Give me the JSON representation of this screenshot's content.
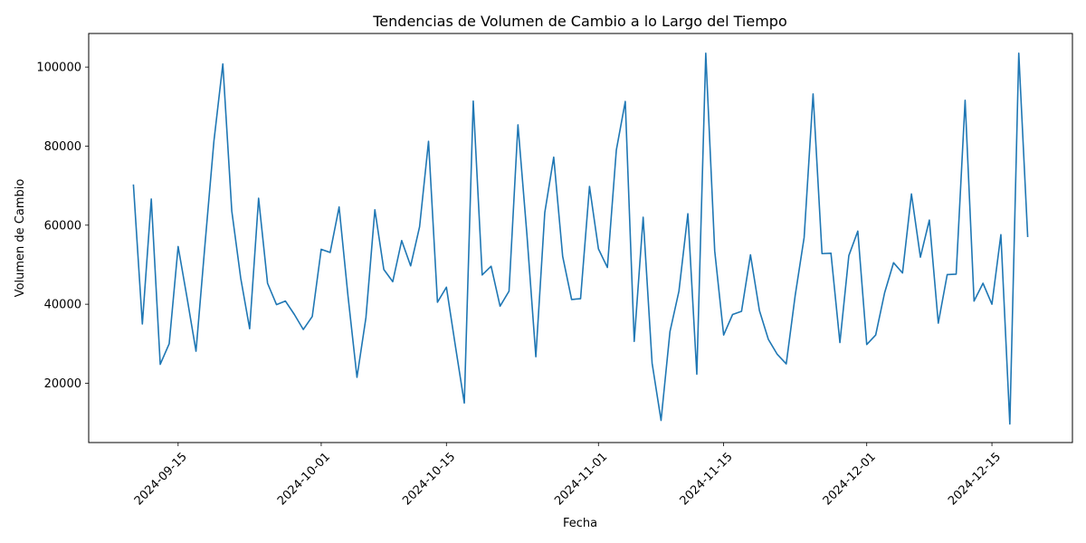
{
  "chart_data": {
    "type": "line",
    "title": "Tendencias de Volumen de Cambio a lo Largo del Tiempo",
    "xlabel": "Fecha",
    "ylabel": "Volumen de Cambio",
    "x_start": "2024-09-10",
    "x_end": "2024-12-19",
    "xlim": [
      "2024-09-05",
      "2024-12-24"
    ],
    "ylim": [
      5000,
      108500
    ],
    "x_ticks": [
      "2024-09-15",
      "2024-10-01",
      "2024-10-15",
      "2024-11-01",
      "2024-11-15",
      "2024-12-01",
      "2024-12-15"
    ],
    "y_ticks": [
      20000,
      40000,
      60000,
      80000,
      100000
    ],
    "x_tick_rotation": 45,
    "grid": false,
    "legend": "none",
    "series": [
      {
        "color": "#1f77b4",
        "values": [
          70300,
          35000,
          66600,
          24800,
          30000,
          54600,
          41600,
          28100,
          55000,
          81200,
          100800,
          63600,
          46600,
          33800,
          66800,
          45300,
          39900,
          40800,
          37400,
          33600,
          36900,
          53900,
          53100,
          64600,
          42000,
          21500,
          36600,
          63900,
          48800,
          45700,
          56100,
          49700,
          59600,
          81200,
          40500,
          44300,
          29500,
          15000,
          91400,
          47400,
          49600,
          39500,
          43300,
          85400,
          57700,
          26700,
          63200,
          77200,
          52100,
          41200,
          41400,
          69800,
          54000,
          49300,
          79000,
          91300,
          30600,
          62000,
          25100,
          10600,
          33100,
          43300,
          62900,
          22300,
          103500,
          53500,
          32200,
          37400,
          38200,
          52500,
          38400,
          31100,
          27300,
          24900,
          42200,
          56900,
          93200,
          52800,
          52900,
          30300,
          52300,
          58500,
          29800,
          32200,
          42900,
          50500,
          47900,
          67900,
          51900,
          61300,
          35200,
          47500,
          47600,
          91600,
          40800,
          45300,
          40000,
          57600,
          9700,
          103500,
          57000
        ]
      }
    ]
  }
}
